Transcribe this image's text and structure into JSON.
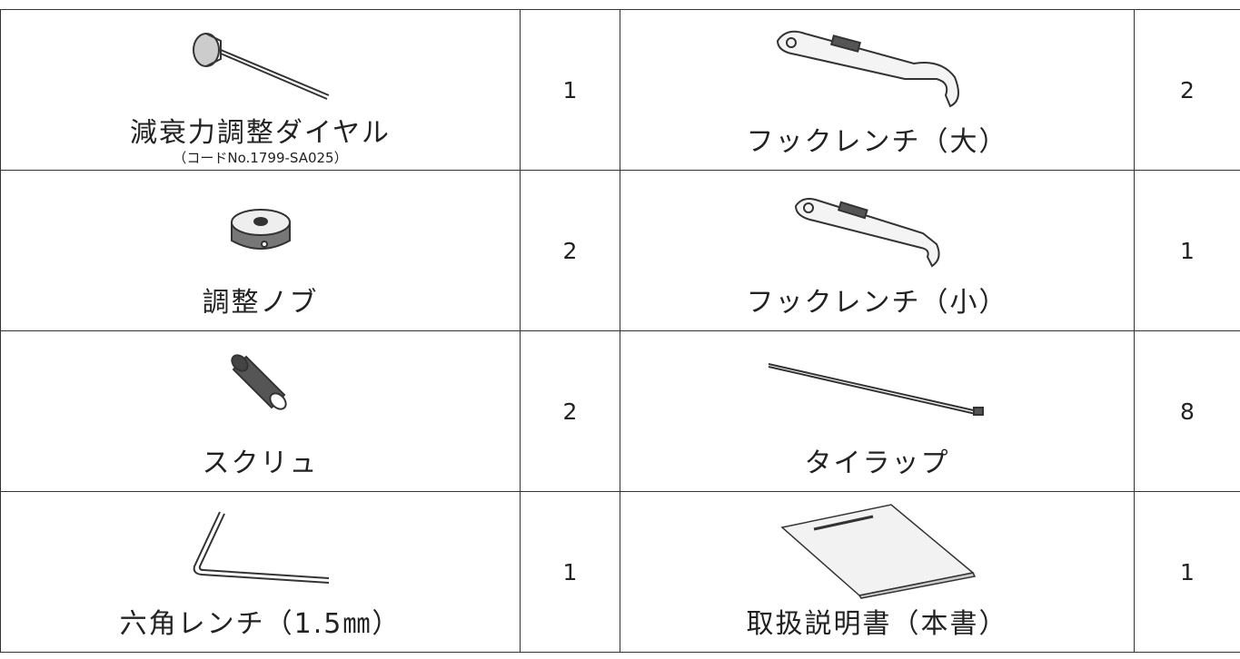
{
  "table": {
    "rows": [
      {
        "left_item": "減衰力調整ダイヤル",
        "left_note": "（コードNo.1799-SA025）",
        "left_qty": 1,
        "right_item": "フックレンチ（大）",
        "right_qty": 2
      },
      {
        "left_item": "調整ノブ",
        "left_qty": 2,
        "right_item": "フックレンチ（小）",
        "right_qty": 1
      },
      {
        "left_item": "スクリュ",
        "left_qty": 2,
        "right_item": "タイラップ",
        "right_qty": 8
      },
      {
        "left_item": "六角レンチ（1.5㎜）",
        "left_qty": 1,
        "right_item": "取扱説明書（本書）",
        "right_qty": 1
      }
    ]
  }
}
